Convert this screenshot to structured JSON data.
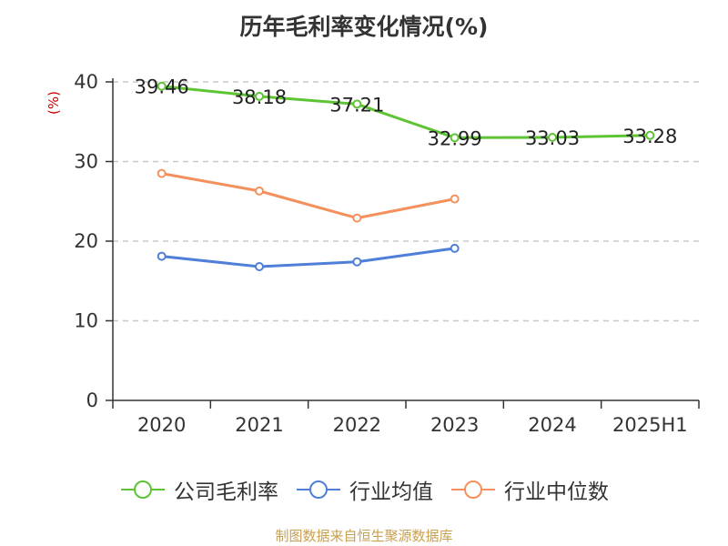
{
  "title": "历年毛利率变化情况(%)",
  "source": "制图数据来自恒生聚源数据库",
  "colors": {
    "company": "#5ec434",
    "industry_avg": "#4f7fd8",
    "industry_median": "#f4905c",
    "grid": "#c8c8c8",
    "axis": "#333333",
    "ylabel": "#cc0000",
    "source": "#c8a050"
  },
  "chart_data": {
    "type": "line",
    "title": "历年毛利率变化情况(%)",
    "ylabel": "(%)",
    "xlabel": "",
    "categories": [
      "2020",
      "2021",
      "2022",
      "2023",
      "2024",
      "2025H1"
    ],
    "ylim": [
      0,
      40
    ],
    "yticks": [
      0,
      10,
      20,
      30,
      40
    ],
    "grid": true,
    "legend_position": "bottom",
    "series": [
      {
        "name": "公司毛利率",
        "key": "company",
        "values": [
          39.46,
          38.18,
          37.21,
          32.99,
          33.03,
          33.28
        ],
        "labels": [
          "39.46",
          "38.18",
          "37.21",
          "32.99",
          "33.03",
          "33.28"
        ]
      },
      {
        "name": "行业均值",
        "key": "industry_avg",
        "values": [
          18.1,
          16.8,
          17.4,
          19.1,
          null,
          null
        ]
      },
      {
        "name": "行业中位数",
        "key": "industry_median",
        "values": [
          28.5,
          26.3,
          22.9,
          25.3,
          null,
          null
        ]
      }
    ]
  }
}
